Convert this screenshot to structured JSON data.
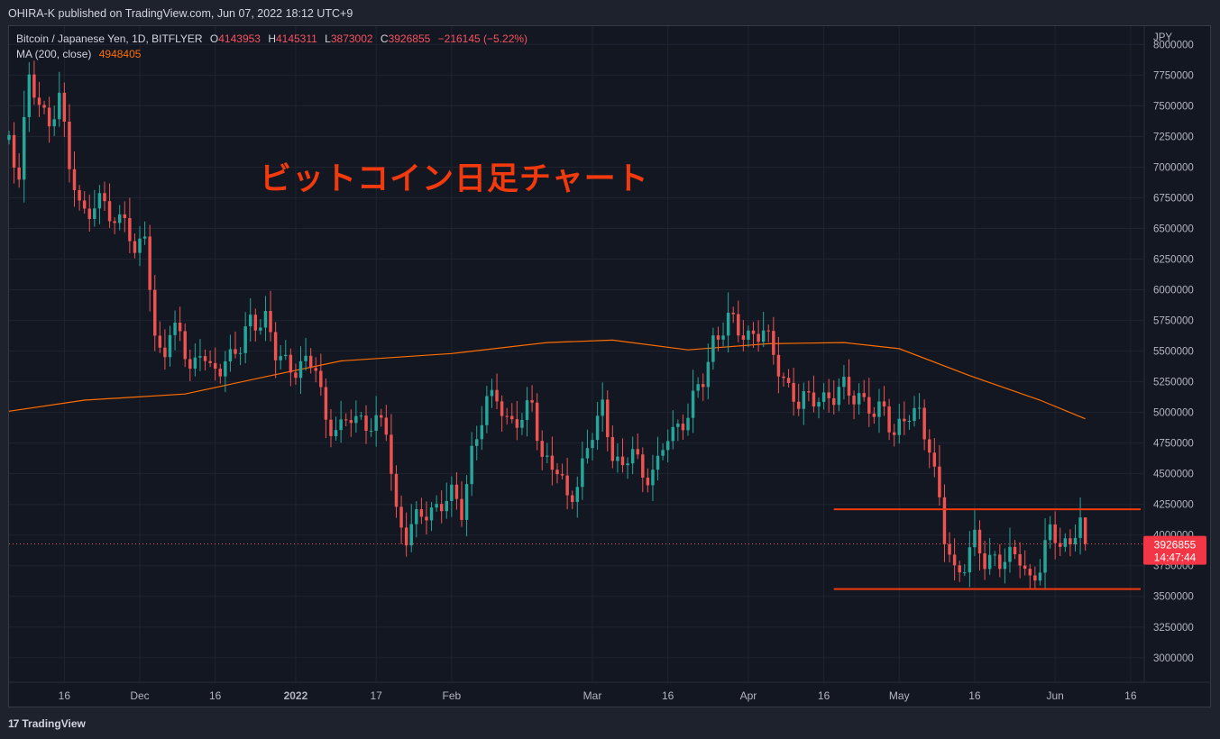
{
  "header": {
    "publisher": "OHIRA-K published on TradingView.com, Jun 07, 2022 18:12 UTC+9"
  },
  "legend": {
    "symbol": "Bitcoin / Japanese Yen, 1D, BITFLYER",
    "o_label": "O",
    "o_value": "4143953",
    "h_label": "H",
    "h_value": "4145311",
    "l_label": "L",
    "l_value": "3873002",
    "c_label": "C",
    "c_value": "3926855",
    "change": "−216145 (−5.22%)",
    "ma_label": "MA (200, close)",
    "ma_value": "4948405"
  },
  "annotation": "ビットコイン日足チャート",
  "price_tag": {
    "price": "3926855",
    "countdown": "14:47:44"
  },
  "footer": {
    "logo_mark": "17",
    "logo_text": "TradingView"
  },
  "colors": {
    "up": "#26a69a",
    "down": "#ef5350",
    "ma": "#ff6d00",
    "annot": "#f23a0e",
    "bg": "#131722"
  },
  "chart_data": {
    "type": "candlestick",
    "currency": "JPY",
    "yaxis_ticks": [
      3000000,
      3250000,
      3500000,
      3750000,
      4000000,
      4250000,
      4500000,
      4750000,
      5000000,
      5250000,
      5500000,
      5750000,
      6000000,
      6250000,
      6500000,
      6750000,
      7000000,
      7250000,
      7500000,
      7750000,
      8000000
    ],
    "ylim": [
      2800000,
      8150000
    ],
    "xlim": [
      "2021-11-05",
      "2022-06-18"
    ],
    "xaxis_ticks": [
      {
        "date": "2021-11-16",
        "label": "16",
        "bold": false
      },
      {
        "date": "2021-12-01",
        "label": "Dec",
        "bold": false
      },
      {
        "date": "2021-12-16",
        "label": "16",
        "bold": false
      },
      {
        "date": "2022-01-01",
        "label": "2022",
        "bold": true
      },
      {
        "date": "2022-01-17",
        "label": "17",
        "bold": false
      },
      {
        "date": "2022-02-01",
        "label": "Feb",
        "bold": false
      },
      {
        "date": "2022-03-01",
        "label": "Mar",
        "bold": false
      },
      {
        "date": "2022-03-16",
        "label": "16",
        "bold": false
      },
      {
        "date": "2022-04-01",
        "label": "Apr",
        "bold": false
      },
      {
        "date": "2022-04-16",
        "label": "16",
        "bold": false
      },
      {
        "date": "2022-05-01",
        "label": "May",
        "bold": false
      },
      {
        "date": "2022-05-16",
        "label": "16",
        "bold": false
      },
      {
        "date": "2022-06-01",
        "label": "Jun",
        "bold": false
      },
      {
        "date": "2022-06-16",
        "label": "16",
        "bold": false
      }
    ],
    "close_path": [
      [
        "2021-11-05",
        7250000
      ],
      [
        "2021-11-07",
        6950000
      ],
      [
        "2021-11-09",
        7700000
      ],
      [
        "2021-11-11",
        7500000
      ],
      [
        "2021-11-13",
        7400000
      ],
      [
        "2021-11-15",
        7550000
      ],
      [
        "2021-11-17",
        7000000
      ],
      [
        "2021-11-19",
        6700000
      ],
      [
        "2021-11-22",
        6650000
      ],
      [
        "2021-11-24",
        6700000
      ],
      [
        "2021-11-26",
        6550000
      ],
      [
        "2021-11-28",
        6650000
      ],
      [
        "2021-11-30",
        6200000
      ],
      [
        "2021-12-02",
        6500000
      ],
      [
        "2021-12-04",
        5600000
      ],
      [
        "2021-12-06",
        5500000
      ],
      [
        "2021-12-09",
        5700000
      ],
      [
        "2021-12-11",
        5350000
      ],
      [
        "2021-12-13",
        5500000
      ],
      [
        "2021-12-15",
        5300000
      ],
      [
        "2021-12-18",
        5450000
      ],
      [
        "2021-12-21",
        5500000
      ],
      [
        "2021-12-23",
        5750000
      ],
      [
        "2021-12-26",
        5780000
      ],
      [
        "2021-12-28",
        5450000
      ],
      [
        "2021-12-31",
        5380000
      ],
      [
        "2022-01-02",
        5400000
      ],
      [
        "2022-01-05",
        5350000
      ],
      [
        "2022-01-07",
        4950000
      ],
      [
        "2022-01-10",
        4850000
      ],
      [
        "2022-01-12",
        4950000
      ],
      [
        "2022-01-14",
        4950000
      ],
      [
        "2022-01-17",
        4900000
      ],
      [
        "2022-01-19",
        4850000
      ],
      [
        "2022-01-21",
        4200000
      ],
      [
        "2022-01-23",
        4000000
      ],
      [
        "2022-01-26",
        4150000
      ],
      [
        "2022-01-29",
        4250000
      ],
      [
        "2022-02-01",
        4300000
      ],
      [
        "2022-02-03",
        4200000
      ],
      [
        "2022-02-05",
        4700000
      ],
      [
        "2022-02-08",
        5050000
      ],
      [
        "2022-02-10",
        5150000
      ],
      [
        "2022-02-12",
        4950000
      ],
      [
        "2022-02-15",
        4900000
      ],
      [
        "2022-02-17",
        5100000
      ],
      [
        "2022-02-19",
        4650000
      ],
      [
        "2022-02-22",
        4500000
      ],
      [
        "2022-02-24",
        4300000
      ],
      [
        "2022-02-26",
        4450000
      ],
      [
        "2022-03-01",
        4800000
      ],
      [
        "2022-03-03",
        5050000
      ],
      [
        "2022-03-05",
        4700000
      ],
      [
        "2022-03-07",
        4500000
      ],
      [
        "2022-03-09",
        4700000
      ],
      [
        "2022-03-11",
        4500000
      ],
      [
        "2022-03-14",
        4550000
      ],
      [
        "2022-03-16",
        4800000
      ],
      [
        "2022-03-18",
        4900000
      ],
      [
        "2022-03-20",
        5000000
      ],
      [
        "2022-03-23",
        5250000
      ],
      [
        "2022-03-25",
        5600000
      ],
      [
        "2022-03-28",
        5750000
      ],
      [
        "2022-03-30",
        5650000
      ],
      [
        "2022-04-01",
        5650000
      ],
      [
        "2022-04-04",
        5650000
      ],
      [
        "2022-04-06",
        5450000
      ],
      [
        "2022-04-08",
        5300000
      ],
      [
        "2022-04-11",
        5050000
      ],
      [
        "2022-04-13",
        5100000
      ],
      [
        "2022-04-15",
        5150000
      ],
      [
        "2022-04-18",
        5100000
      ],
      [
        "2022-04-20",
        5200000
      ],
      [
        "2022-04-23",
        5150000
      ],
      [
        "2022-04-26",
        4950000
      ],
      [
        "2022-04-28",
        5050000
      ],
      [
        "2022-04-30",
        4850000
      ],
      [
        "2022-05-03",
        4950000
      ],
      [
        "2022-05-05",
        5000000
      ],
      [
        "2022-05-07",
        4750000
      ],
      [
        "2022-05-09",
        4250000
      ],
      [
        "2022-05-10",
        3950000
      ],
      [
        "2022-05-12",
        3700000
      ],
      [
        "2022-05-14",
        3800000
      ],
      [
        "2022-05-16",
        3950000
      ],
      [
        "2022-05-18",
        3750000
      ],
      [
        "2022-05-20",
        3850000
      ],
      [
        "2022-05-22",
        3800000
      ],
      [
        "2022-05-25",
        3800000
      ],
      [
        "2022-05-27",
        3650000
      ],
      [
        "2022-05-29",
        3750000
      ],
      [
        "2022-05-31",
        4000000
      ],
      [
        "2022-06-02",
        3950000
      ],
      [
        "2022-06-04",
        3950000
      ],
      [
        "2022-06-06",
        4143953
      ]
    ],
    "last_candle": {
      "date": "2022-06-07",
      "open": 4143953,
      "high": 4145311,
      "low": 3873002,
      "close": 3926855
    },
    "ma200": [
      [
        "2021-11-05",
        5010000
      ],
      [
        "2021-11-20",
        5100000
      ],
      [
        "2021-12-10",
        5150000
      ],
      [
        "2021-12-27",
        5300000
      ],
      [
        "2022-01-10",
        5420000
      ],
      [
        "2022-02-01",
        5480000
      ],
      [
        "2022-02-20",
        5570000
      ],
      [
        "2022-03-05",
        5590000
      ],
      [
        "2022-03-20",
        5510000
      ],
      [
        "2022-04-05",
        5560000
      ],
      [
        "2022-04-20",
        5570000
      ],
      [
        "2022-05-01",
        5520000
      ],
      [
        "2022-05-15",
        5300000
      ],
      [
        "2022-05-29",
        5100000
      ],
      [
        "2022-06-07",
        4948405
      ]
    ],
    "horizontal_lines": [
      {
        "from": "2022-04-18",
        "to": "2022-06-18",
        "price": 4210000
      },
      {
        "from": "2022-04-18",
        "to": "2022-06-18",
        "price": 3560000
      }
    ],
    "current_price": 3926855
  }
}
